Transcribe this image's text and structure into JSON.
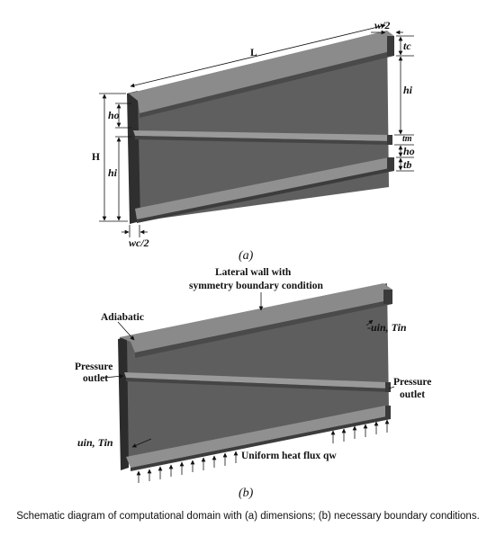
{
  "figure_a": {
    "sub_label": "(a)",
    "dims": {
      "L": "L",
      "w_half": "w/2",
      "t_c": "tc",
      "h_i_right": "hi",
      "t_m": "tm",
      "h_o_right": "ho",
      "t_b": "tb",
      "H": "H",
      "h_o_left": "ho",
      "h_i_left": "hi",
      "wc_half": "wc/2"
    }
  },
  "figure_b": {
    "sub_label": "(b)",
    "lateral_wall_line1": "Lateral wall with",
    "lateral_wall_line2": "symmetry boundary condition",
    "adiabatic": "Adiabatic",
    "pressure_outlet_left_line1": "Pressure",
    "pressure_outlet_left_line2": "outlet",
    "pressure_outlet_right_line1": "Pressure",
    "pressure_outlet_right_line2": "outlet",
    "inlet_right": "-uin, Tin",
    "inlet_left": "uin, Tin",
    "heat_flux": "Uniform heat flux qw"
  },
  "caption": "Schematic diagram of computational domain with (a) dimensions; (b) necessary boundary conditions.",
  "colors": {
    "body_face": "#5e5e5e",
    "top_face": "#8a8a8a",
    "front_edge": "#2e2e2e"
  }
}
